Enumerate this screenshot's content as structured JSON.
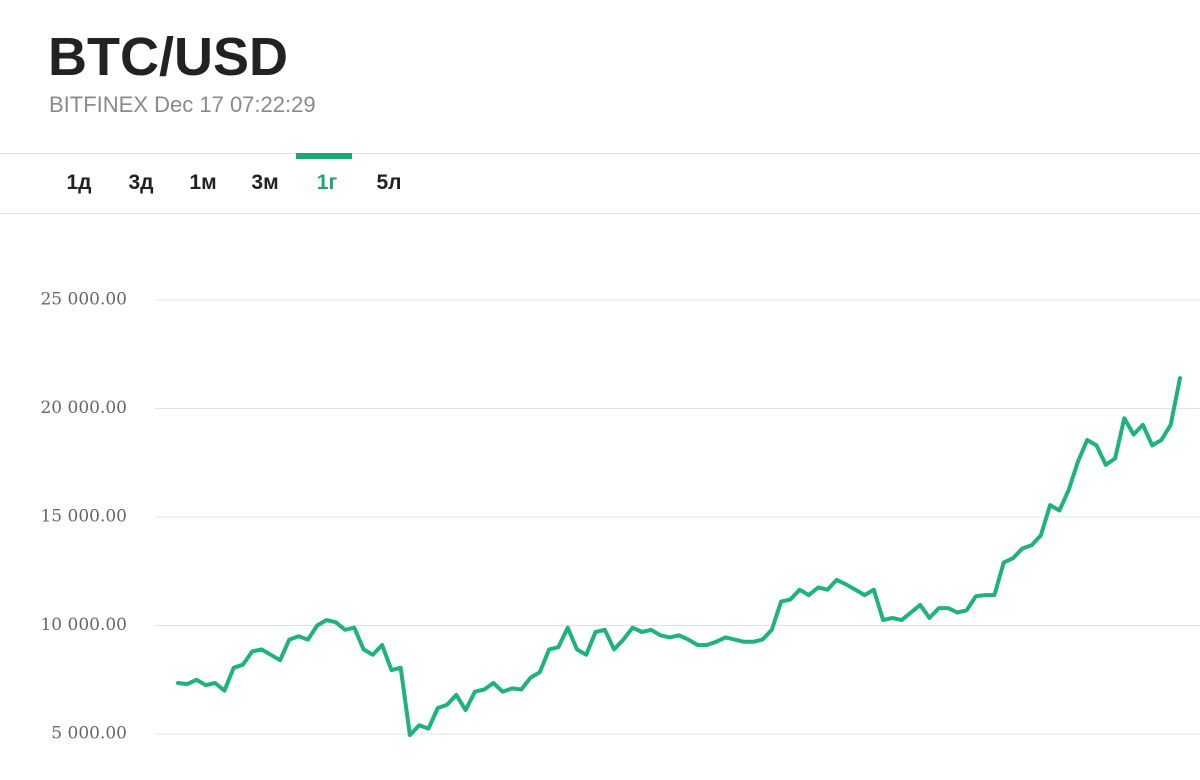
{
  "header": {
    "title": "BTC/USD",
    "subtitle": "BITFINEX Dec 17 07:22:29"
  },
  "tabs": {
    "items": [
      "1д",
      "3д",
      "1м",
      "3м",
      "1г",
      "5л"
    ],
    "active": 4,
    "active_color": "#1aa86f"
  },
  "chart_data": {
    "type": "line",
    "color": "#1db37a",
    "grid": true,
    "ylim": [
      3000,
      28000
    ],
    "yticks": [
      {
        "value": 5000,
        "label": "5 000.00"
      },
      {
        "value": 10000,
        "label": "10 000.00"
      },
      {
        "value": 15000,
        "label": "15 000.00"
      },
      {
        "value": 20000,
        "label": "20 000.00"
      },
      {
        "value": 25000,
        "label": "25 000.00"
      }
    ],
    "values": [
      7350,
      7300,
      7500,
      7250,
      7350,
      7000,
      8050,
      8200,
      8800,
      8900,
      8650,
      8400,
      9350,
      9500,
      9350,
      10000,
      10250,
      10150,
      9800,
      9900,
      8900,
      8650,
      9100,
      7950,
      8050,
      4950,
      5400,
      5250,
      6200,
      6350,
      6800,
      6100,
      6950,
      7050,
      7350,
      6950,
      7100,
      7050,
      7600,
      7850,
      8900,
      9000,
      9900,
      8900,
      8650,
      9700,
      9800,
      8900,
      9350,
      9900,
      9700,
      9800,
      9550,
      9450,
      9550,
      9350,
      9100,
      9100,
      9250,
      9450,
      9350,
      9250,
      9250,
      9350,
      9800,
      11100,
      11200,
      11650,
      11400,
      11750,
      11650,
      12100,
      11900,
      11650,
      11400,
      11650,
      10250,
      10350,
      10250,
      10600,
      10950,
      10350,
      10800,
      10800,
      10600,
      10700,
      11350,
      11400,
      11400,
      12900,
      13100,
      13550,
      13700,
      14150,
      15550,
      15300,
      16250,
      17550,
      18550,
      18300,
      17400,
      17700,
      19550,
      18800,
      19250,
      18300,
      18550,
      19250,
      21400
    ]
  }
}
